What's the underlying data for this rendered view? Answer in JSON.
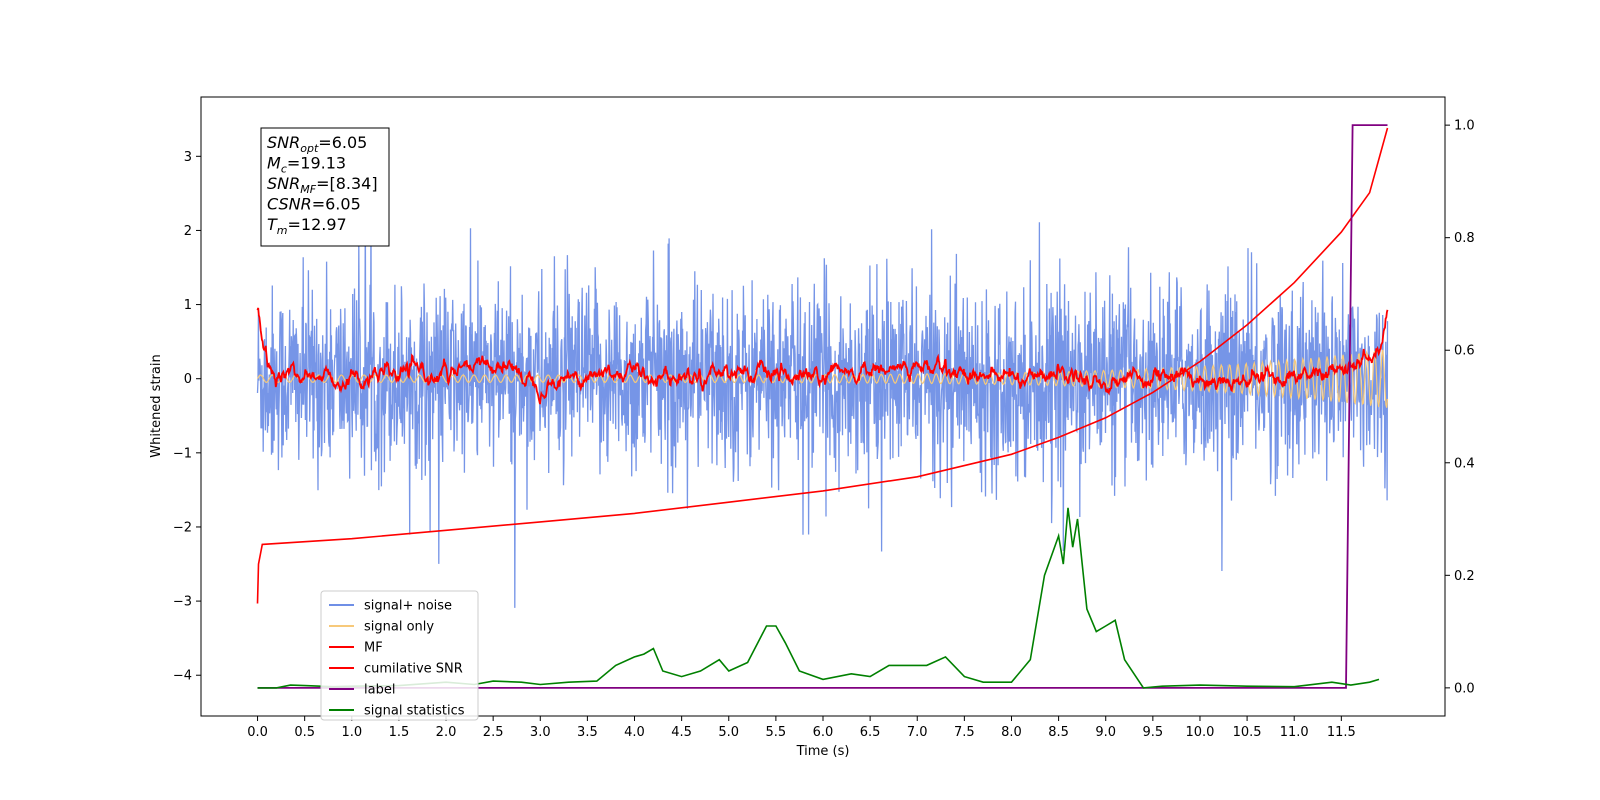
{
  "chart_data": {
    "type": "line",
    "xlabel": "Time (s)",
    "ylabel_left": "Whitened strain",
    "ylabel_right": "",
    "xlim": [
      -0.6,
      12.6
    ],
    "ylim_left": [
      -4.55,
      3.8
    ],
    "ylim_right": [
      -0.05,
      1.05
    ],
    "x_ticks": [
      0.0,
      0.5,
      1.0,
      1.5,
      2.0,
      2.5,
      3.0,
      3.5,
      4.0,
      4.5,
      5.0,
      5.5,
      6.0,
      6.5,
      7.0,
      7.5,
      8.0,
      8.5,
      9.0,
      9.5,
      10.0,
      10.5,
      11.0,
      11.5
    ],
    "x_tick_labels": [
      "0.0",
      "0.5",
      "1.0",
      "1.5",
      "2.0",
      "2.5",
      "3.0",
      "3.5",
      "4.0",
      "4.5",
      "5.0",
      "5.5",
      "6.0",
      "6.5",
      "7.0",
      "7.5",
      "8.0",
      "8.5",
      "9.0",
      "9.5",
      "10.0",
      "10.5",
      "11.0",
      "11.5"
    ],
    "y_left_ticks": [
      3,
      2,
      1,
      0,
      -1,
      -2,
      -3,
      -4
    ],
    "y_left_tick_labels": [
      "3",
      "2",
      "1",
      "0",
      "−1",
      "−2",
      "−3",
      "−4"
    ],
    "y_right_ticks": [
      1.0,
      0.8,
      0.6,
      0.4,
      0.2,
      0.0
    ],
    "y_right_tick_labels": [
      "1.0",
      "0.8",
      "0.6",
      "0.4",
      "0.2",
      "0.0"
    ],
    "grid": false,
    "legend_position": "lower-left",
    "annotation": [
      {
        "main": "SNR",
        "sub": "opt",
        "value": "=6.05"
      },
      {
        "main": "M",
        "sub": "c",
        "value": "=19.13"
      },
      {
        "main": "SNR",
        "sub": "MF",
        "value": "=[8.34]"
      },
      {
        "main": "CSNR",
        "sub": "",
        "value": "=6.05"
      },
      {
        "main": "T",
        "sub": "m",
        "value": "=12.97"
      }
    ],
    "series": [
      {
        "name": "signal+ noise",
        "axis": "left",
        "color": "#6f8fe6",
        "style": "noise band, approx. range -2.0 to 2.0 with spikes to ~3.4 / -3.1",
        "x_range": [
          0.0,
          11.99
        ],
        "envelope": [
          -1.3,
          1.3
        ]
      },
      {
        "name": "signal only",
        "axis": "left",
        "color": "#f7c97a",
        "style": "small chirp, amplitude grows from ~0.05 to ~0.4 near 11.9 s",
        "x_range": [
          0.0,
          11.99
        ]
      },
      {
        "name": "MF",
        "axis": "left",
        "color": "#ff0000",
        "x": [
          0.0,
          0.05,
          0.1,
          0.2,
          0.3,
          0.5,
          1.0,
          1.5,
          2.0,
          2.6,
          3.0,
          3.5,
          4.0,
          4.5,
          5.0,
          5.5,
          6.0,
          6.5,
          7.0,
          7.5,
          8.0,
          8.5,
          9.0,
          9.5,
          10.0,
          10.5,
          11.0,
          11.5,
          11.9,
          11.99
        ],
        "y": [
          1.0,
          0.45,
          0.15,
          0.0,
          0.1,
          0.05,
          0.0,
          0.05,
          0.05,
          0.2,
          -0.05,
          0.05,
          0.1,
          0.0,
          0.15,
          0.0,
          0.0,
          0.1,
          0.15,
          0.1,
          0.0,
          0.1,
          -0.05,
          0.05,
          0.0,
          0.0,
          0.05,
          0.1,
          0.3,
          0.9
        ]
      },
      {
        "name": "cumilative SNR",
        "axis": "right",
        "color": "#ff0000",
        "x": [
          0.0,
          0.01,
          0.05,
          1.0,
          2.0,
          3.0,
          4.0,
          5.0,
          6.0,
          7.0,
          8.0,
          8.5,
          9.0,
          9.5,
          10.0,
          10.5,
          11.0,
          11.5,
          11.8,
          11.99
        ],
        "y": [
          0.15,
          0.22,
          0.255,
          0.265,
          0.28,
          0.295,
          0.31,
          0.33,
          0.35,
          0.375,
          0.415,
          0.445,
          0.48,
          0.525,
          0.58,
          0.645,
          0.72,
          0.81,
          0.88,
          0.995
        ]
      },
      {
        "name": "label",
        "axis": "right",
        "color": "#800080",
        "x": [
          0.0,
          11.55,
          11.62,
          11.99
        ],
        "y": [
          0.0,
          0.0,
          1.0,
          1.0
        ]
      },
      {
        "name": "signal statistics",
        "axis": "right",
        "color": "#008000",
        "x": [
          0.0,
          0.2,
          0.35,
          0.5,
          0.8,
          1.0,
          1.5,
          2.0,
          2.3,
          2.5,
          2.8,
          3.0,
          3.3,
          3.6,
          3.8,
          4.0,
          4.1,
          4.2,
          4.3,
          4.5,
          4.7,
          4.9,
          5.0,
          5.2,
          5.4,
          5.5,
          5.6,
          5.75,
          6.0,
          6.3,
          6.5,
          6.7,
          6.9,
          7.1,
          7.3,
          7.5,
          7.7,
          8.0,
          8.2,
          8.35,
          8.5,
          8.55,
          8.6,
          8.65,
          8.7,
          8.8,
          8.9,
          9.0,
          9.1,
          9.2,
          9.4,
          9.6,
          10.0,
          10.5,
          11.0,
          11.4,
          11.6,
          11.8,
          11.9
        ],
        "y": [
          0.0,
          0.0,
          0.005,
          0.004,
          0.002,
          0.003,
          0.004,
          0.01,
          0.006,
          0.012,
          0.01,
          0.006,
          0.01,
          0.012,
          0.04,
          0.055,
          0.06,
          0.07,
          0.03,
          0.02,
          0.03,
          0.05,
          0.03,
          0.045,
          0.11,
          0.11,
          0.08,
          0.03,
          0.015,
          0.025,
          0.02,
          0.04,
          0.04,
          0.04,
          0.055,
          0.02,
          0.01,
          0.01,
          0.05,
          0.2,
          0.27,
          0.22,
          0.32,
          0.25,
          0.3,
          0.14,
          0.1,
          0.11,
          0.12,
          0.05,
          0.0,
          0.003,
          0.005,
          0.003,
          0.002,
          0.01,
          0.005,
          0.01,
          0.015
        ]
      }
    ]
  }
}
